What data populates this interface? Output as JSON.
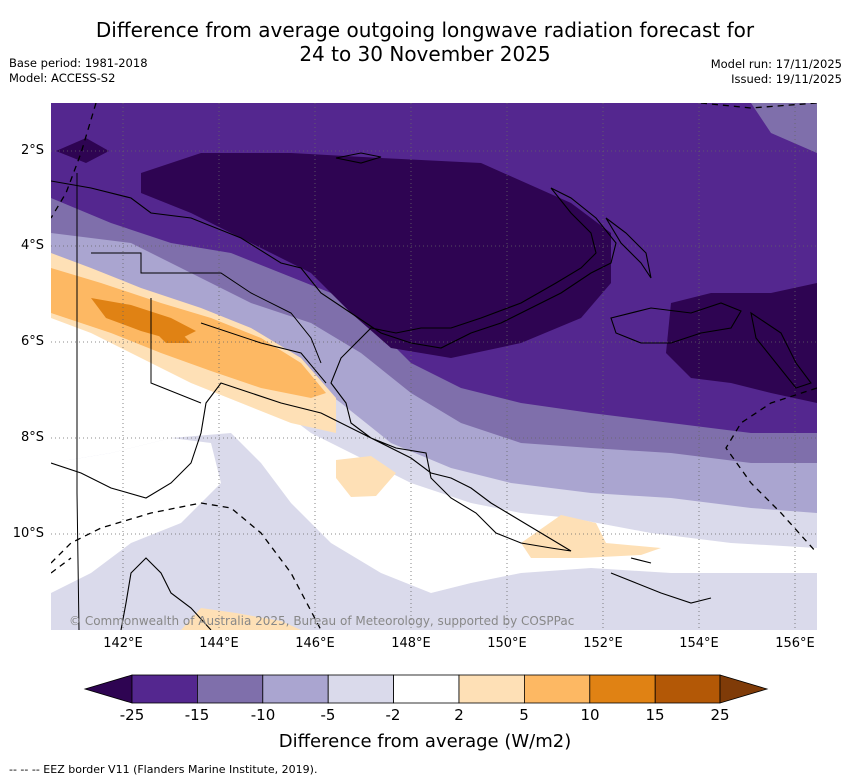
{
  "title": {
    "line1": "Difference from average outgoing longwave radiation forecast for",
    "line2": "24 to 30 November 2025"
  },
  "meta": {
    "base_period": "Base period: 1981-2018",
    "model": "Model: ACCESS-S2",
    "model_run": "Model run: 17/11/2025",
    "issued": "Issued: 19/11/2025"
  },
  "map": {
    "lat_labels": [
      "2°S",
      "4°S",
      "6°S",
      "8°S",
      "10°S"
    ],
    "lon_labels": [
      "142°E",
      "144°E",
      "146°E",
      "148°E",
      "150°E",
      "152°E",
      "154°E",
      "156°E"
    ],
    "credit": "© Commonwealth of Australia 2025, Bureau of Meteorology, supported by COSPPac"
  },
  "colorbar": {
    "labels": [
      "-25",
      "-15",
      "-10",
      "-5",
      "-2",
      "2",
      "5",
      "10",
      "15",
      "25"
    ],
    "colors": [
      "#2e0452",
      "#54278f",
      "#7f6fab",
      "#aaa5d0",
      "#dadaeb",
      "#ffffff",
      "#fee0b6",
      "#fdb863",
      "#e08214",
      "#b35806",
      "#7f3b08"
    ],
    "title": "Difference from average (W/m2)"
  },
  "legend": "--  --  -- EEZ border V11 (Flanders Marine Institute, 2019)."
}
